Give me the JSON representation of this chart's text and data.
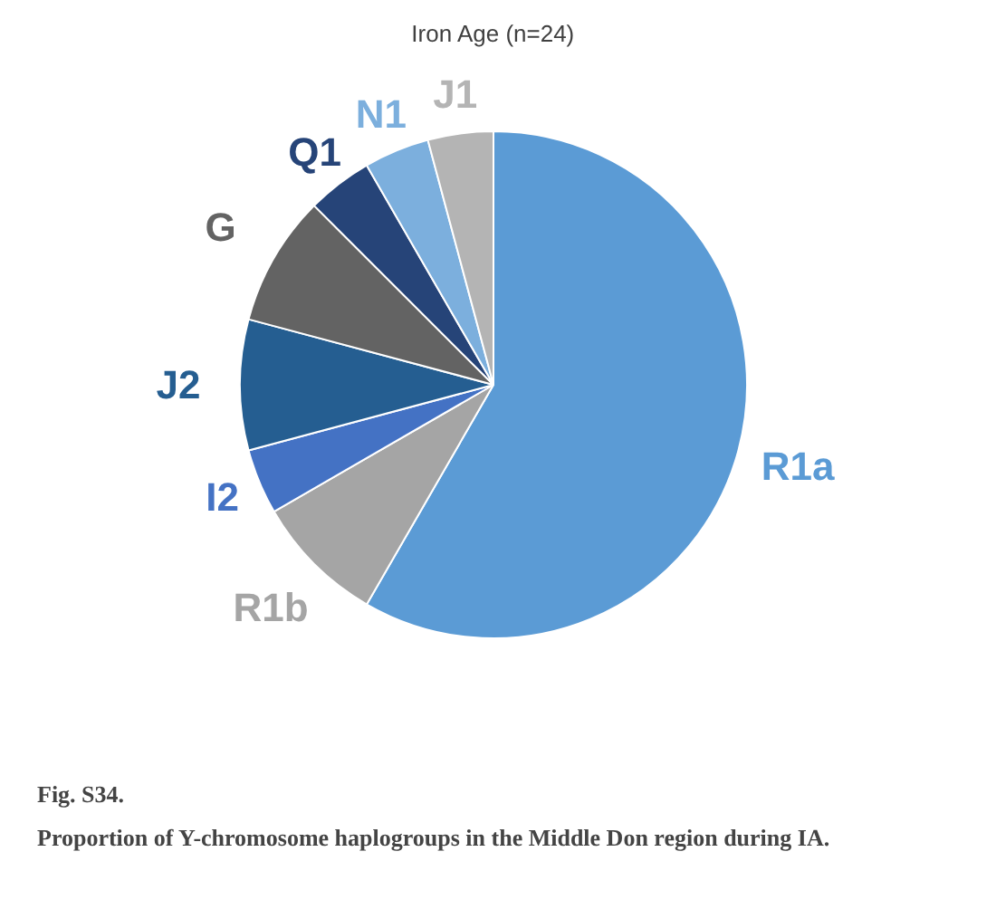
{
  "chart_data": {
    "type": "pie",
    "title": "Iron Age (n=24)",
    "categories": [
      "R1a",
      "R1b",
      "I2",
      "J2",
      "G",
      "Q1",
      "N1",
      "J1"
    ],
    "values": [
      58.33,
      8.33,
      4.17,
      8.33,
      8.33,
      4.17,
      4.17,
      4.17
    ],
    "colors": [
      "#5b9bd5",
      "#a5a5a5",
      "#4472c4",
      "#255e91",
      "#636363",
      "#264478",
      "#7cafdd",
      "#b4b4b4"
    ],
    "data_labels": false,
    "annotations": [
      "Fig. S34.",
      "Proportion of Y-chromosome haplogroups in the Middle Don region during IA."
    ]
  }
}
